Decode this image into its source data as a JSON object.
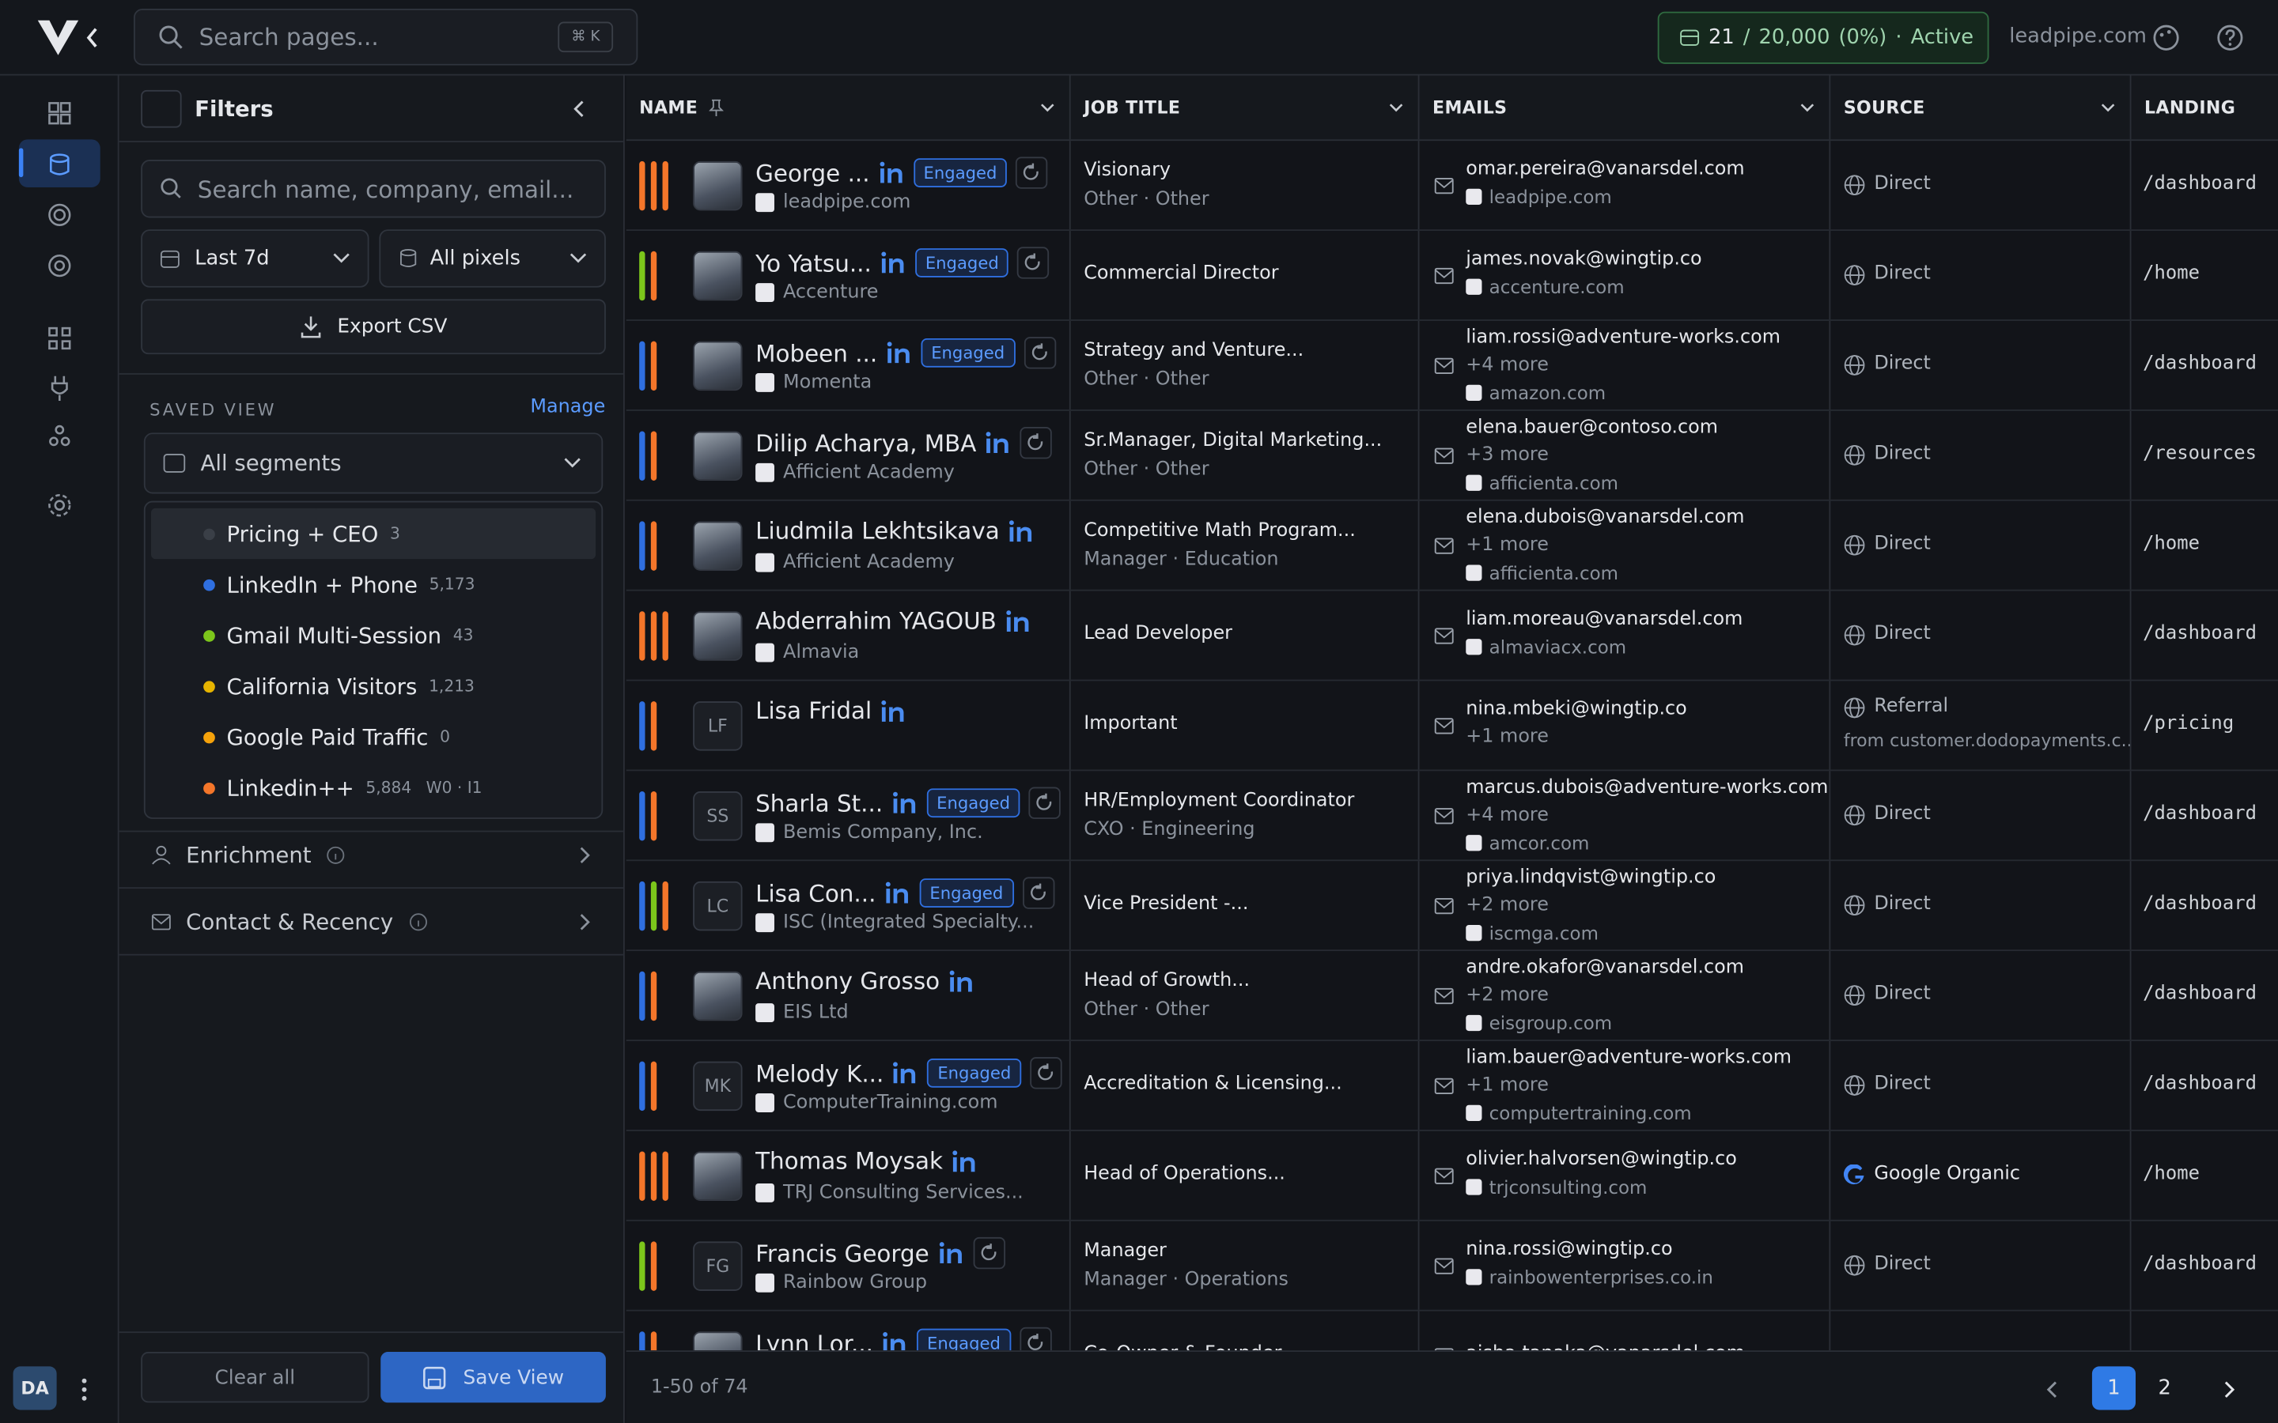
{
  "header": {
    "search": "Search pages...",
    "shortcut": "⌘ K",
    "usage": {
      "used": "21",
      "sep": "/",
      "limit": "20,000",
      "percent": "(0%)",
      "dot": "·",
      "status": "Active"
    },
    "domain": "leadpipe.com"
  },
  "sidebar": {
    "avatar": "DA",
    "filters": {
      "title": "Filters",
      "search": "Search name, company, email...",
      "date": "Last 7d",
      "pixels": "All pixels",
      "export": "Export CSV",
      "saved_view": "SAVED VIEW",
      "manage": "Manage",
      "select": "All segments",
      "segments": [
        {
          "name": "Pricing + CEO",
          "count": "3",
          "color": "#3a3f47"
        },
        {
          "name": "LinkedIn + Phone",
          "count": "5,173",
          "color": "#2f6fe0"
        },
        {
          "name": "Gmail Multi-Session",
          "count": "43",
          "color": "#7cc61b"
        },
        {
          "name": "California Visitors",
          "count": "1,213",
          "color": "#e6b400"
        },
        {
          "name": "Google Paid Traffic",
          "count": "0",
          "color": "#f5a20b"
        },
        {
          "name": "Linkedin++",
          "count": "5,884",
          "color": "#f4762a",
          "extra": "W0 · I1"
        }
      ],
      "sections": [
        "Enrichment",
        "Contact & Recency"
      ],
      "clear": "Clear all",
      "save": "Save View"
    }
  },
  "table": {
    "columns": [
      "NAME",
      "JOB TITLE",
      "EMAILS",
      "SOURCE",
      "LANDING"
    ],
    "rows": [
      {
        "name": "George ...",
        "badge": "Engaged",
        "company": "leadpipe.com",
        "bars": [
          "#f4762a",
          "#f4762a",
          "#f4762a"
        ],
        "title": "Visionary",
        "sub": "Other · Other",
        "email": "omar.pereira@vanarsdel.com",
        "domain": "leadpipe.com",
        "source": "Direct",
        "landing": "/dashboard"
      },
      {
        "name": "Yo Yatsu...",
        "badge": "Engaged",
        "company": "Accenture",
        "bars": [
          "#7cc61b",
          "#f4762a"
        ],
        "title": "Commercial Director",
        "email": "james.novak@wingtip.co",
        "domain": "accenture.com",
        "source": "Direct",
        "landing": "/home"
      },
      {
        "name": "Mobeen ...",
        "badge": "Engaged",
        "company": "Momenta",
        "bars": [
          "#2f6fe0",
          "#f4762a"
        ],
        "title": "Strategy and Venture...",
        "sub": "Other · Other",
        "email": "liam.rossi@adventure-works.com",
        "more": "+4 more",
        "domain": "amazon.com",
        "source": "Direct",
        "landing": "/dashboard"
      },
      {
        "name": "Dilip Acharya, MBA",
        "company": "Afficient Academy",
        "bars": [
          "#2f6fe0",
          "#f4762a"
        ],
        "title": "Sr.Manager, Digital Marketing...",
        "sub": "Other · Other",
        "email": "elena.bauer@contoso.com",
        "more": "+3 more",
        "domain": "afficienta.com",
        "source": "Direct",
        "landing": "/resources"
      },
      {
        "name": "Liudmila Lekhtsikava",
        "company": "Afficient Academy",
        "bars": [
          "#2f6fe0",
          "#f4762a"
        ],
        "title": "Competitive Math Program...",
        "sub": "Manager · Education",
        "email": "elena.dubois@vanarsdel.com",
        "more": "+1 more",
        "domain": "afficienta.com",
        "source": "Direct",
        "landing": "/home"
      },
      {
        "name": "Abderrahim YAGOUB",
        "company": "Almavia",
        "bars": [
          "#f4762a",
          "#f4762a",
          "#f4762a"
        ],
        "title": "Lead Developer",
        "email": "liam.moreau@vanarsdel.com",
        "domain": "almaviacx.com",
        "source": "Direct",
        "landing": "/dashboard"
      },
      {
        "name": "Lisa Fridal",
        "initials": "LF",
        "bars": [
          "#2f6fe0",
          "#f4762a"
        ],
        "title": "Important",
        "email": "nina.mbeki@wingtip.co",
        "more": "+1 more",
        "source": "Referral",
        "source_sub": "from customer.dodopayments.c...",
        "landing": "/pricing"
      },
      {
        "name": "Sharla St...",
        "initials": "SS",
        "badge": "Engaged",
        "company": "Bemis Company, Inc.",
        "bars": [
          "#2f6fe0",
          "#f4762a"
        ],
        "title": "HR/Employment Coordinator",
        "sub": "CXO · Engineering",
        "email": "marcus.dubois@adventure-works.com",
        "more": "+4 more",
        "domain": "amcor.com",
        "source": "Direct",
        "landing": "/dashboard"
      },
      {
        "name": "Lisa Con...",
        "initials": "LC",
        "badge": "Engaged",
        "company": "ISC (Integrated Specialty...",
        "bars": [
          "#2f6fe0",
          "#7cc61b",
          "#f4762a"
        ],
        "title": "Vice President -...",
        "email": "priya.lindqvist@wingtip.co",
        "more": "+2 more",
        "domain": "iscmga.com",
        "source": "Direct",
        "landing": "/dashboard"
      },
      {
        "name": "Anthony Grosso",
        "company": "EIS Ltd",
        "bars": [
          "#2f6fe0",
          "#f4762a"
        ],
        "title": "Head of Growth...",
        "sub": "Other · Other",
        "email": "andre.okafor@vanarsdel.com",
        "more": "+2 more",
        "domain": "eisgroup.com",
        "source": "Direct",
        "landing": "/dashboard"
      },
      {
        "name": "Melody K...",
        "initials": "MK",
        "badge": "Engaged",
        "company": "ComputerTraining.com",
        "bars": [
          "#2f6fe0",
          "#f4762a"
        ],
        "title": "Accreditation & Licensing...",
        "email": "liam.bauer@adventure-works.com",
        "more": "+1 more",
        "domain": "computertraining.com",
        "source": "Direct",
        "landing": "/dashboard"
      },
      {
        "name": "Thomas Moysak",
        "company": "TRJ Consulting Services...",
        "bars": [
          "#f4762a",
          "#f4762a",
          "#f4762a"
        ],
        "title": "Head of Operations...",
        "email": "olivier.halvorsen@wingtip.co",
        "domain": "trjconsulting.com",
        "source": "Google Organic",
        "landing": "/home"
      },
      {
        "name": "Francis George",
        "initials": "FG",
        "company": "Rainbow Group",
        "bars": [
          "#7cc61b",
          "#f4762a"
        ],
        "title": "Manager",
        "sub": "Manager · Operations",
        "email": "nina.rossi@wingtip.co",
        "domain": "rainbowenterprises.co.in",
        "source": "Direct",
        "landing": "/dashboard"
      },
      {
        "name": "Lynn Lor...",
        "badge": "Engaged",
        "bars": [
          "#2f6fe0",
          "#f4762a"
        ],
        "title": "Co-Owner & Founder",
        "email": "aisha.tanaka@vanarsdel.com"
      }
    ]
  },
  "footer": {
    "range": "1-50 of 74",
    "pages": [
      "1",
      "2"
    ]
  }
}
